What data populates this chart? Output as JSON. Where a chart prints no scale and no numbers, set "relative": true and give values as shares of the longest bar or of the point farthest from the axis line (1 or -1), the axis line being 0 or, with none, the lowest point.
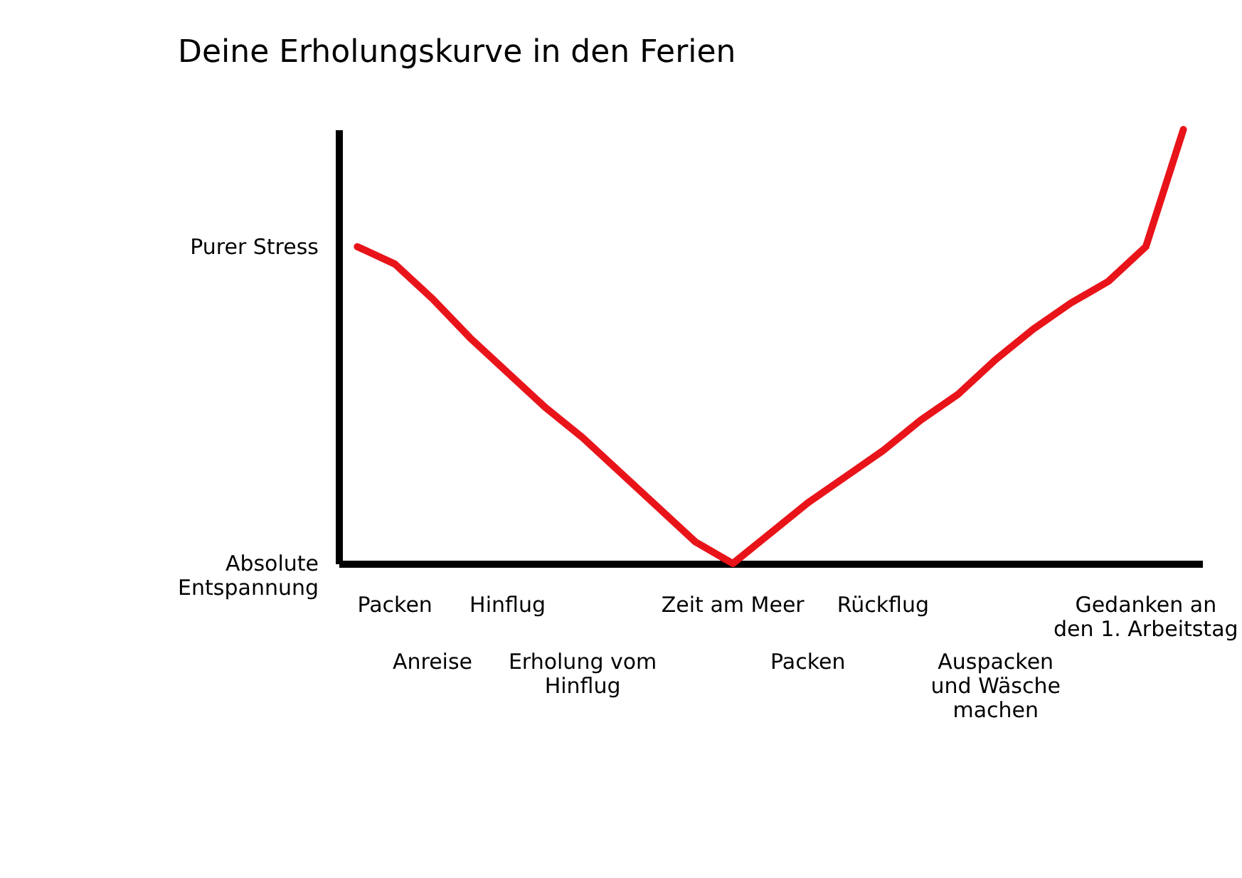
{
  "chart_data": {
    "type": "line",
    "title": "Deine Erholungskurve in den Ferien",
    "relative": true,
    "categories": [
      null,
      "Packen",
      "Anreise",
      null,
      "Hinflug",
      null,
      "Erholung vom\nHinflug",
      null,
      null,
      null,
      "Zeit am Meer",
      null,
      "Packen",
      null,
      "Rückflug",
      null,
      null,
      "Auspacken\nund Wäsche\nmachen",
      null,
      null,
      null,
      "Gedanken an\nden 1. Arbeitstag",
      null
    ],
    "annotations": [
      "Purer Stress",
      "Absolute\nEntspannung"
    ],
    "grid": false,
    "marker": "none",
    "line_style": "solid",
    "series": [
      {
        "color": "#e8141a",
        "values": [
          0.73,
          0.69,
          0.61,
          0.52,
          0.44,
          0.36,
          0.29,
          0.21,
          0.13,
          0.05,
          0,
          0.07,
          0.14,
          0.2,
          0.26,
          0.33,
          0.39,
          0.47,
          0.54,
          0.6,
          0.65,
          0.73,
          1.0
        ]
      }
    ]
  }
}
